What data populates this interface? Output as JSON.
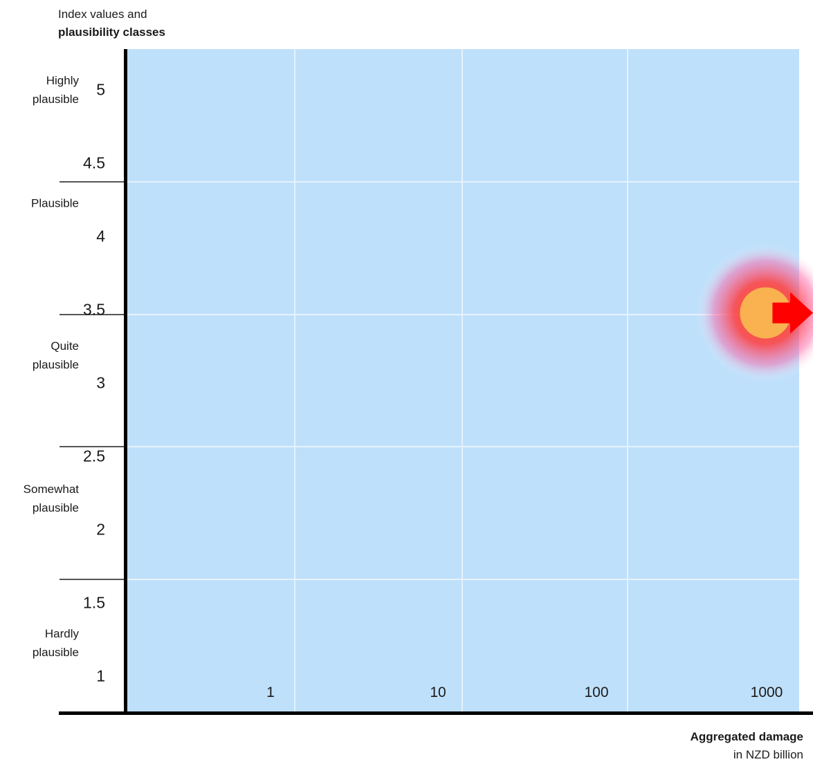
{
  "chart_data": {
    "type": "scatter",
    "ylabel": [
      "Index values and",
      "plausibility classes"
    ],
    "xlabel": [
      "Aggregated damage",
      "in NZD billion"
    ],
    "x_scale": "log",
    "x_ticks": [
      {
        "value": 1,
        "label": "1"
      },
      {
        "value": 10,
        "label": "10"
      },
      {
        "value": 100,
        "label": "100"
      },
      {
        "value": 1000,
        "label": "1000"
      }
    ],
    "x_range": [
      0.1,
      1000
    ],
    "ylim": [
      0.5,
      5.5
    ],
    "y_ticks": [
      {
        "value": 5,
        "label": "5"
      },
      {
        "value": 4.5,
        "label": "4.5"
      },
      {
        "value": 4,
        "label": "4"
      },
      {
        "value": 3.5,
        "label": "3.5"
      },
      {
        "value": 3,
        "label": "3"
      },
      {
        "value": 2.5,
        "label": "2.5"
      },
      {
        "value": 2,
        "label": "2"
      },
      {
        "value": 1.5,
        "label": "1.5"
      },
      {
        "value": 1,
        "label": "1"
      }
    ],
    "classes": [
      {
        "label": "Highly plausible",
        "lines": [
          "Highly",
          "plausible"
        ],
        "center": 5.0
      },
      {
        "label": "Plausible",
        "lines": [
          "Plausible"
        ],
        "center": 4.25
      },
      {
        "label": "Quite plausible",
        "lines": [
          "Quite",
          "plausible"
        ],
        "center": 3.25
      },
      {
        "label": "Somewhat plausible",
        "lines": [
          "Somewhat",
          "plausible"
        ],
        "center": 2.25
      },
      {
        "label": "Hardly plausible",
        "lines": [
          "Hardly",
          "plausible"
        ],
        "center": 1.25
      }
    ],
    "class_boundaries": [
      1.5,
      2.5,
      3.5,
      4.5
    ],
    "points": [
      {
        "x": 700,
        "y": 3.5,
        "color": "#f9b24f",
        "glow": "#ff2a2a",
        "arrow": "right",
        "arrow_color": "#ff0000"
      }
    ],
    "grid": true,
    "background": "#bfe0fb"
  }
}
